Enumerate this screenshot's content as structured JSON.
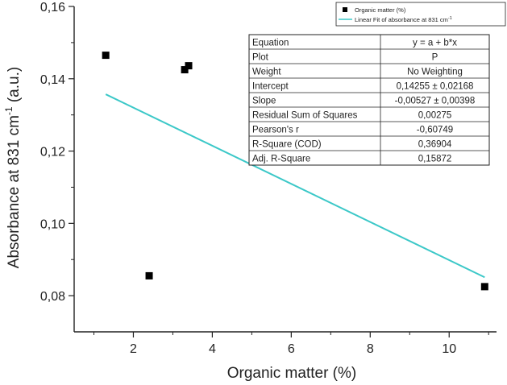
{
  "chart_data": {
    "type": "scatter",
    "xlabel": "Organic matter (%)",
    "ylabel_main": "Absorbance at 831 cm",
    "ylabel_sup": "-1",
    "ylabel_tail": " (a.u.)",
    "xlim": [
      0.5,
      11.2
    ],
    "ylim": [
      0.07,
      0.16
    ],
    "xticks": [
      2,
      4,
      6,
      8,
      10
    ],
    "xtick_labels": [
      "2",
      "4",
      "6",
      "8",
      "10"
    ],
    "yticks": [
      0.08,
      0.1,
      0.12,
      0.14,
      0.16
    ],
    "ytick_labels": [
      "0,08",
      "0,10",
      "0,12",
      "0,14",
      "0,16"
    ],
    "series": [
      {
        "name": "Organic matter (%)",
        "marker": "square",
        "color": "#000000",
        "points": [
          {
            "x": 1.3,
            "y": 0.1465
          },
          {
            "x": 2.4,
            "y": 0.0855
          },
          {
            "x": 3.3,
            "y": 0.1425
          },
          {
            "x": 3.4,
            "y": 0.1436
          },
          {
            "x": 10.9,
            "y": 0.0825
          }
        ]
      },
      {
        "name": "Linear Fit of absorbance at 831 cm",
        "name_sup": "-1",
        "type": "line",
        "color": "#3cc8c8",
        "x": [
          1.3,
          10.9
        ],
        "y": [
          0.1357,
          0.0851
        ]
      }
    ],
    "stats_table": [
      [
        "Equation",
        "y = a + b*x"
      ],
      [
        "Plot",
        "P"
      ],
      [
        "Weight",
        "No Weighting"
      ],
      [
        "Intercept",
        "0,14255 ± 0,02168"
      ],
      [
        "Slope",
        "-0,00527 ± 0,00398"
      ],
      [
        "Residual Sum of Squares",
        "0,00275"
      ],
      [
        "Pearson's r",
        "-0,60749"
      ],
      [
        "R-Square (COD)",
        "0,36904"
      ],
      [
        "Adj. R-Square",
        "0,15872"
      ]
    ],
    "grid": false,
    "legend_position": "top-right"
  }
}
